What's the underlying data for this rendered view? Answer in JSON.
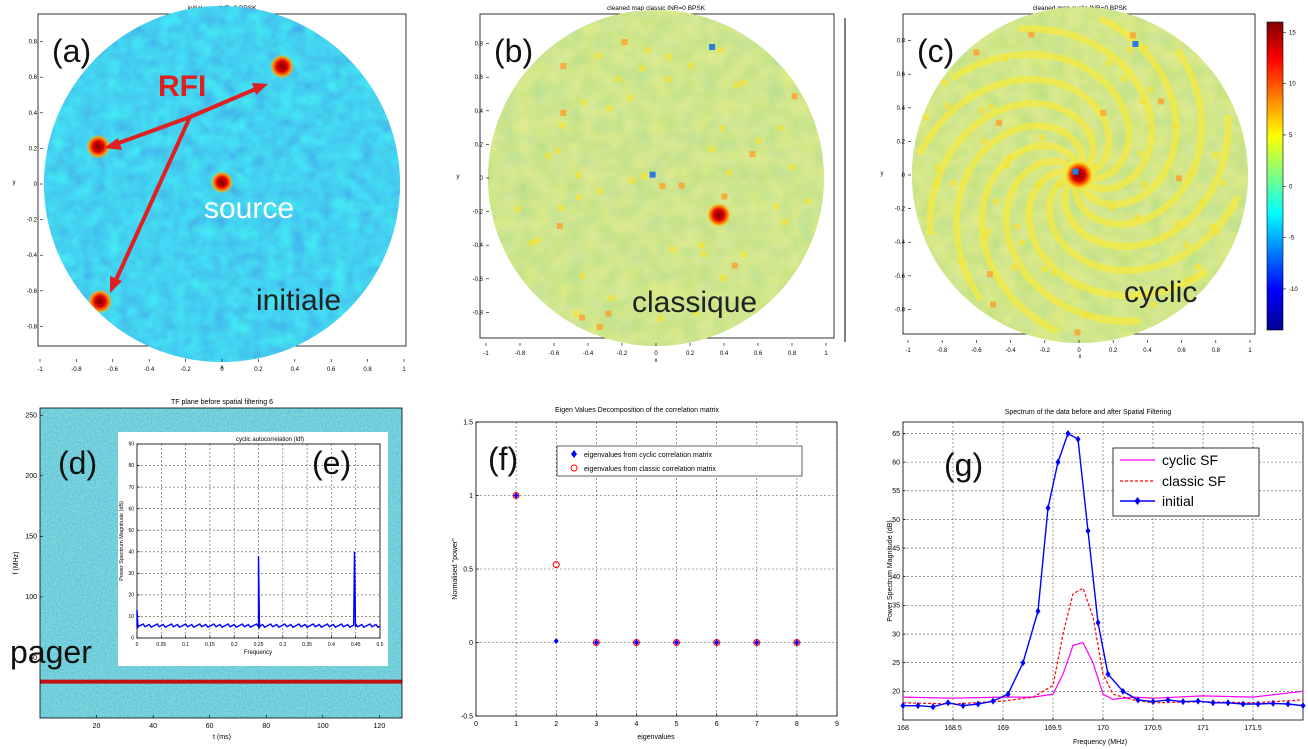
{
  "colors": {
    "map_background": "#4fa6e8",
    "map_green": "#b4e063",
    "annotation_red": "#e02020",
    "spectrum_blue": "#0000ff",
    "classic_red": "#ff0000",
    "cyclic_magenta": "#ff00ff",
    "tf_background": "#3ba5c6",
    "pager_line": "#c41010"
  },
  "colorbar": {
    "ticks": [
      15,
      10,
      5,
      0,
      -5,
      -10
    ],
    "range": [
      -14,
      16
    ]
  },
  "panel_a": {
    "tag": "(a)",
    "title": "initial map  INR=0  BPSK",
    "xlabel": "x",
    "ylabel": "y",
    "overlay_labels": [
      "RFI",
      "source",
      "initiale"
    ]
  },
  "panel_b": {
    "tag": "(b)",
    "title": "cleaned map classic  INR=0  BPSK",
    "xlabel": "x",
    "ylabel": "y",
    "overlay_labels": [
      "classique"
    ]
  },
  "panel_c": {
    "tag": "(c)",
    "title": "cleaned map cyclic  INR=0  BPSK",
    "xlabel": "x",
    "ylabel": "y",
    "overlay_labels": [
      "cyclic"
    ]
  },
  "panel_d": {
    "tag": "(d)",
    "title": "TF plane before spatial filtering 6",
    "xlabel": "t (ms)",
    "ylabel": "f (MHz)",
    "overlay_labels": [
      "pager"
    ]
  },
  "panel_e": {
    "tag": "(e)",
    "title": "cyclic autocorrelation (ldf)",
    "xlabel": "Frequency",
    "ylabel": "Power Spectrum Magnitude (dB)"
  },
  "panel_f": {
    "tag": "(f)",
    "title": "Eigen Values Decomposition of the correlation matrix",
    "xlabel": "eigenvalues",
    "ylabel": "Normalised \"power\""
  },
  "panel_g": {
    "tag": "(g)",
    "title": "Spectrum of the data before and after Spatial Filtering",
    "xlabel": "Frequency (MHz)",
    "ylabel": "Power Spectrum Magnitude (dB)"
  },
  "chart_data": [
    {
      "type": "heatmap",
      "panel": "a",
      "xlim": [
        -1,
        1
      ],
      "ylim": [
        -1,
        1
      ],
      "xticks": [
        "-1",
        "-0.8",
        "-0.6",
        "-0.4",
        "-0.2",
        "0",
        "0.2",
        "0.4",
        "0.6",
        "0.8",
        "1"
      ],
      "yticks": [
        "0.8",
        "0.6",
        "0.4",
        "0.2",
        "0",
        "-0.2",
        "-0.4",
        "-0.6",
        "-0.8"
      ],
      "hotspots": [
        {
          "x": 0.33,
          "y": 0.66,
          "kind": "RFI"
        },
        {
          "x": -0.68,
          "y": 0.21,
          "kind": "RFI"
        },
        {
          "x": -0.67,
          "y": -0.66,
          "kind": "RFI"
        },
        {
          "x": 0.0,
          "y": 0.01,
          "kind": "source"
        }
      ]
    },
    {
      "type": "heatmap",
      "panel": "b",
      "xlim": [
        -1,
        1
      ],
      "ylim": [
        -1,
        1
      ],
      "xticks": [
        "-1",
        "-0.8",
        "-0.6",
        "-0.4",
        "-0.2",
        "0",
        "0.2",
        "0.4",
        "0.6",
        "0.8",
        "1"
      ],
      "yticks": [
        "0.8",
        "0.6",
        "0.4",
        "0.2",
        "0",
        "-0.2",
        "-0.4",
        "-0.6",
        "-0.8"
      ],
      "hotspots": [
        {
          "x": 0.37,
          "y": -0.22,
          "kind": "peak"
        }
      ]
    },
    {
      "type": "heatmap",
      "panel": "c",
      "xlim": [
        -1,
        1
      ],
      "ylim": [
        -1,
        1
      ],
      "xticks": [
        "-1",
        "-0.8",
        "-0.6",
        "-0.4",
        "-0.2",
        "0",
        "0.2",
        "0.4",
        "0.6",
        "0.8",
        "1"
      ],
      "yticks": [
        "0.8",
        "0.6",
        "0.4",
        "0.2",
        "0",
        "-0.2",
        "-0.4",
        "-0.6",
        "-0.8"
      ],
      "hotspots": [
        {
          "x": 0.0,
          "y": 0.0,
          "kind": "source"
        }
      ]
    },
    {
      "type": "heatmap",
      "panel": "d",
      "xlim": [
        0,
        128
      ],
      "ylim": [
        0,
        256
      ],
      "xticks": [
        "20",
        "40",
        "60",
        "80",
        "100",
        "120"
      ],
      "yticks": [
        "250",
        "200",
        "150",
        "100",
        "50"
      ],
      "pager_f": 30
    },
    {
      "type": "line",
      "panel": "e",
      "xlim": [
        0,
        0.5
      ],
      "ylim": [
        0,
        90
      ],
      "xticks": [
        "0",
        "0.05",
        "0.1",
        "0.15",
        "0.2",
        "0.25",
        "0.3",
        "0.35",
        "0.4",
        "0.45",
        "0.5"
      ],
      "yticks": [
        "90",
        "80",
        "70",
        "60",
        "50",
        "40",
        "30",
        "20",
        "10",
        "0"
      ],
      "baseline": 5,
      "spikes": [
        {
          "x": 0.0,
          "y": 13
        },
        {
          "x": 0.25,
          "y": 38
        },
        {
          "x": 0.4475,
          "y": 40
        }
      ]
    },
    {
      "type": "scatter",
      "panel": "f",
      "xlim": [
        0,
        9
      ],
      "ylim": [
        -0.5,
        1.5
      ],
      "xticks": [
        "0",
        "1",
        "2",
        "3",
        "4",
        "5",
        "6",
        "7",
        "8",
        "9"
      ],
      "yticks": [
        "1.5",
        "1",
        "0.5",
        "0",
        "-0.5"
      ],
      "legend": "top-right",
      "series": [
        {
          "name": "eigenvalues from cyclic correlation matrix",
          "x": [
            1,
            2,
            3,
            4,
            5,
            6,
            7,
            8
          ],
          "y": [
            1,
            0.01,
            0,
            0,
            0,
            0,
            0,
            0
          ]
        },
        {
          "name": "eigenvalues from classic correlation matrix",
          "x": [
            1,
            2,
            3,
            4,
            5,
            6,
            7,
            8
          ],
          "y": [
            1,
            0.53,
            0,
            0,
            0,
            0,
            0,
            0
          ]
        }
      ]
    },
    {
      "type": "line",
      "panel": "g",
      "xlim": [
        168,
        172
      ],
      "ylim": [
        15,
        67
      ],
      "xticks": [
        "168",
        "168.5",
        "169",
        "169.5",
        "170",
        "170.5",
        "171",
        "171.5"
      ],
      "yticks": [
        "65",
        "60",
        "55",
        "50",
        "45",
        "40",
        "35",
        "30",
        "25",
        "20"
      ],
      "legend": "top-right",
      "series": [
        {
          "name": "cyclic SF",
          "x": [
            168,
            168.5,
            169,
            169.3,
            169.5,
            169.6,
            169.7,
            169.8,
            169.9,
            170,
            170.1,
            170.3,
            170.5,
            171,
            171.5,
            172
          ],
          "y": [
            19,
            18.8,
            19,
            19,
            19.5,
            23,
            28,
            28.5,
            25,
            19.5,
            18.6,
            19,
            18.8,
            19.2,
            19,
            20
          ]
        },
        {
          "name": "classic SF",
          "x": [
            168,
            168.5,
            169,
            169.3,
            169.5,
            169.6,
            169.7,
            169.8,
            169.9,
            170,
            170.1,
            170.3,
            170.5,
            171,
            171.5,
            172
          ],
          "y": [
            18,
            17.8,
            18.3,
            19,
            21,
            30,
            37,
            38,
            33,
            23,
            19.5,
            18.5,
            18,
            18.2,
            18,
            18.5
          ]
        },
        {
          "name": "initial",
          "x": [
            168,
            168.15,
            168.3,
            168.45,
            168.6,
            168.75,
            168.9,
            169.05,
            169.2,
            169.35,
            169.45,
            169.55,
            169.65,
            169.75,
            169.85,
            169.95,
            170.05,
            170.2,
            170.35,
            170.5,
            170.65,
            170.8,
            170.95,
            171.1,
            171.25,
            171.4,
            171.55,
            171.7,
            171.85,
            172
          ],
          "y": [
            17.5,
            17.5,
            17.3,
            18,
            17.5,
            17.8,
            18.3,
            19.5,
            25,
            34,
            52,
            60,
            65,
            64,
            48,
            32,
            23,
            20,
            18.5,
            18.2,
            18.5,
            18.2,
            18.3,
            18,
            18,
            17.8,
            17.8,
            17.9,
            17.8,
            17.5
          ]
        }
      ]
    }
  ]
}
